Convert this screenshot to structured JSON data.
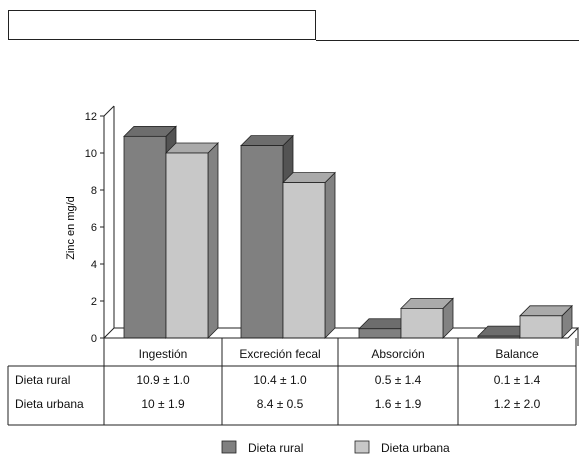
{
  "chart_data": {
    "type": "bar",
    "style": "3d-clustered-column",
    "categories": [
      "Ingestión",
      "Excreción fecal",
      "Absorción",
      "Balance"
    ],
    "series": [
      {
        "name": "Dieta rural",
        "values": [
          10.9,
          10.4,
          0.5,
          0.1
        ],
        "table": [
          "10.9 ± 1.0",
          "10.4 ± 1.0",
          "0.5 ± 1.4",
          "0.1 ± 1.4"
        ],
        "color": "#808080"
      },
      {
        "name": "Dieta urbana",
        "values": [
          10,
          8.4,
          1.6,
          1.2
        ],
        "table": [
          "10 ± 1.9",
          "8.4 ± 0.5",
          "1.6 ± 1.9",
          "1.2 ± 2.0"
        ],
        "color": "#c8c8c8"
      }
    ],
    "ylabel": "Zinc en mg/d",
    "ylim": [
      0,
      12
    ],
    "yticks": [
      0,
      2,
      4,
      6,
      8,
      10,
      12
    ],
    "grid": false,
    "legend": "bottom"
  }
}
